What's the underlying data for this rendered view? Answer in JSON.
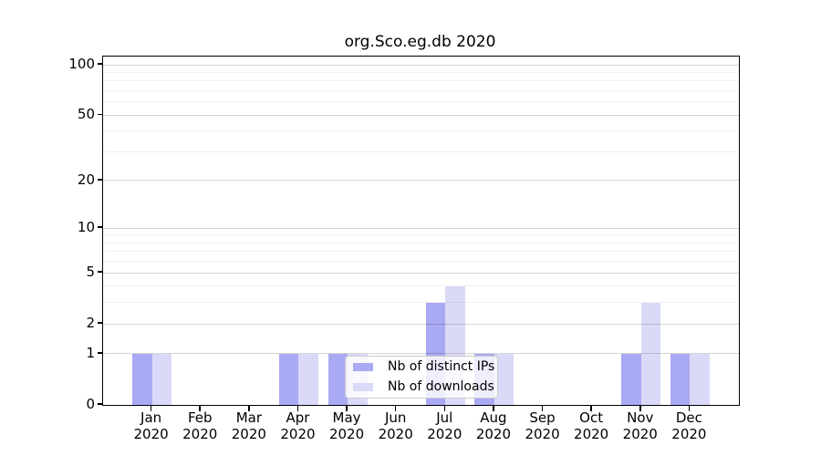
{
  "title": "org.Sco.eg.db 2020",
  "chart_data": {
    "type": "bar",
    "title": "org.Sco.eg.db 2020",
    "xlabel": "",
    "ylabel": "",
    "scale": "log1p",
    "grid": "horizontal",
    "legend_position": "inside lower-center",
    "categories": [
      "Jan 2020",
      "Feb 2020",
      "Mar 2020",
      "Apr 2020",
      "May 2020",
      "Jun 2020",
      "Jul 2020",
      "Aug 2020",
      "Sep 2020",
      "Oct 2020",
      "Nov 2020",
      "Dec 2020"
    ],
    "series": [
      {
        "name": "Nb of distinct IPs",
        "color": "#a9a9f4",
        "values": [
          1,
          0,
          0,
          1,
          1,
          0,
          3,
          1,
          0,
          0,
          1,
          1
        ]
      },
      {
        "name": "Nb of downloads",
        "color": "#dadaf8",
        "values": [
          1,
          0,
          0,
          1,
          1,
          0,
          4,
          1,
          0,
          0,
          3,
          1
        ]
      }
    ],
    "yticks": [
      0,
      1,
      2,
      5,
      10,
      20,
      50,
      100
    ],
    "yticks_minor": [
      3,
      4,
      6,
      7,
      8,
      9,
      30,
      40,
      60,
      70,
      80,
      90
    ],
    "ylim": [
      0,
      112
    ]
  },
  "colors": {
    "bar_distinct_ips": "#a9a9f4",
    "bar_downloads": "#dadaf8",
    "axis": "#000000",
    "grid_major": "rgba(0,0,0,0.16)",
    "grid_minor": "rgba(0,0,0,0.055)",
    "legend_border": "#cccccc",
    "background": "#ffffff"
  }
}
